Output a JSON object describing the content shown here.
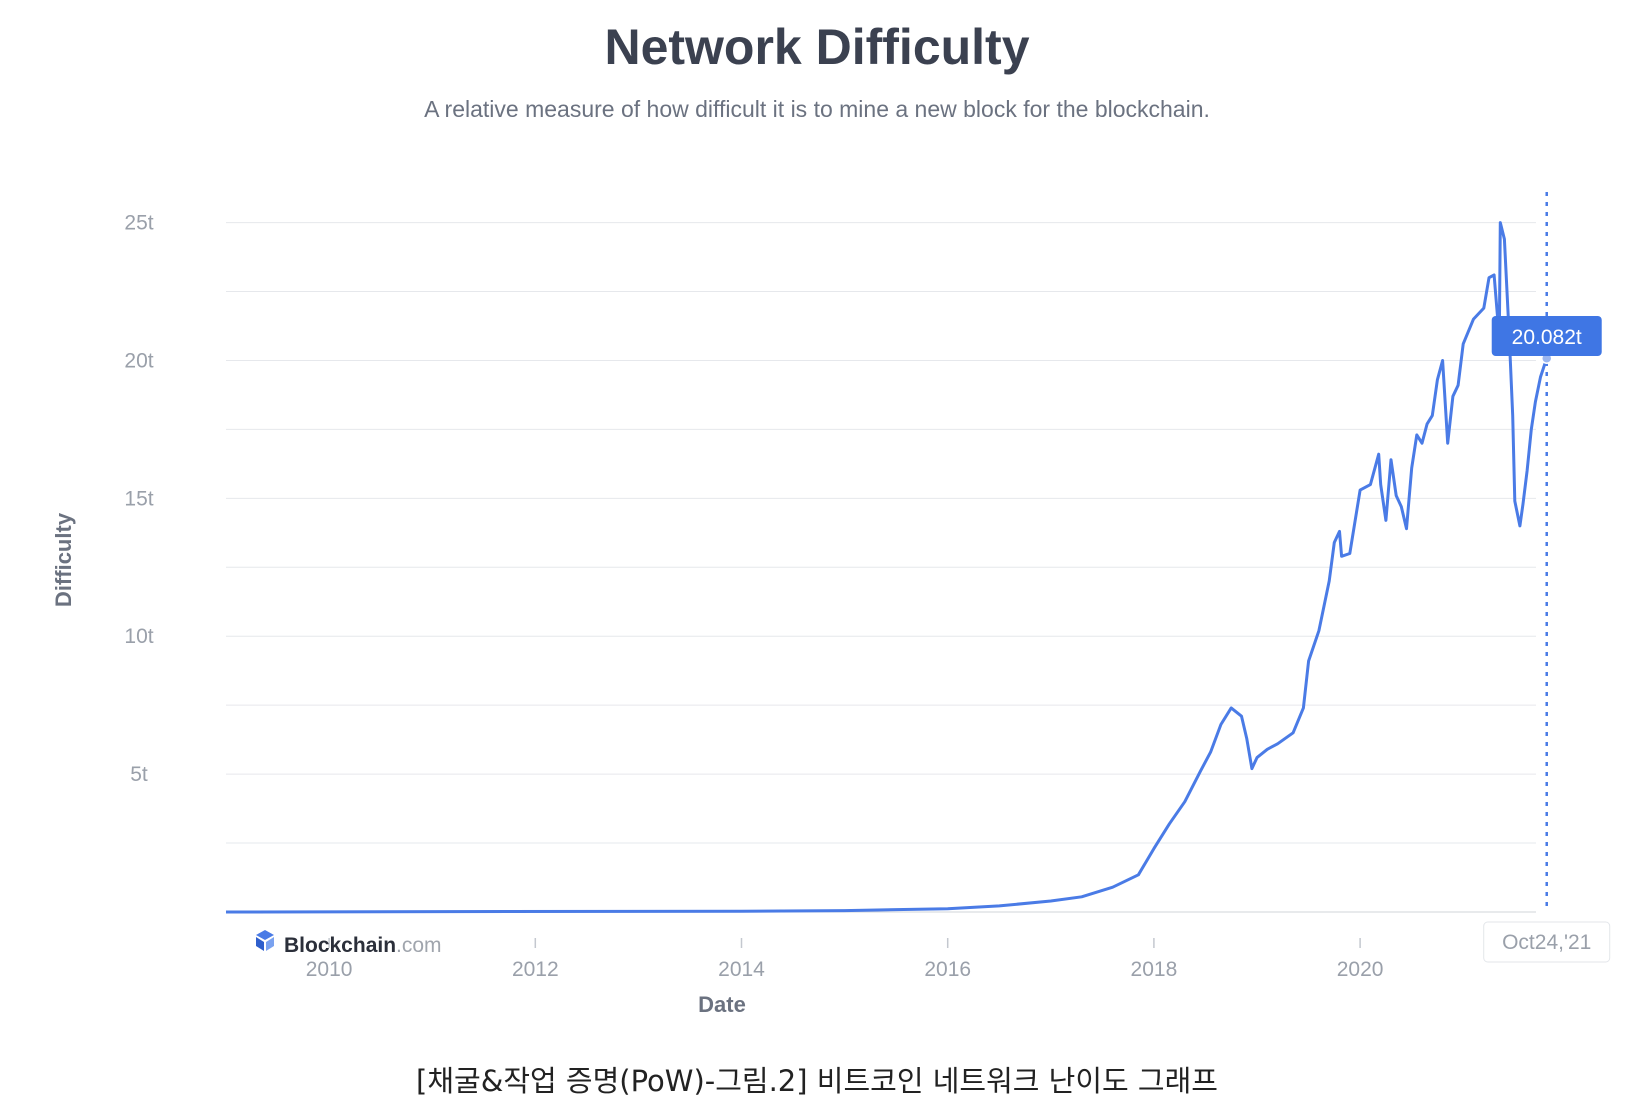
{
  "caption": "[채굴&작업 증명(PoW)-그림.2] 비트코인 네트워크 난이도 그래프",
  "brand": {
    "name": "Blockchain",
    "suffix": ".com"
  },
  "colors": {
    "line": "#4a7be6",
    "grid": "#e6e8ec",
    "text": "#9aa0aa",
    "tooltip": "#3f76e4"
  },
  "chart_data": {
    "type": "line",
    "title": "Network Difficulty",
    "subtitle": "A relative measure of how difficult it is to mine a new block for the blockchain.",
    "xlabel": "Date",
    "ylabel": "Difficulty",
    "xlim": [
      2009.0,
      2021.9
    ],
    "ylim": [
      0,
      26
    ],
    "y_ticks": [
      5,
      10,
      15,
      20,
      25
    ],
    "y_tick_labels": [
      "5t",
      "10t",
      "15t",
      "20t",
      "25t"
    ],
    "x_ticks": [
      2010,
      2012,
      2014,
      2016,
      2018,
      2020
    ],
    "x_tick_labels": [
      "2010",
      "2012",
      "2014",
      "2016",
      "2018",
      "2020"
    ],
    "grid": true,
    "cursor": {
      "x": 2021.81,
      "date_label": "Oct24,'21",
      "value_label": "20.082t",
      "value": 20.082
    },
    "series": [
      {
        "unit": "t",
        "points": [
          [
            2009.0,
            0.0
          ],
          [
            2014.0,
            0.03
          ],
          [
            2015.0,
            0.05
          ],
          [
            2016.0,
            0.12
          ],
          [
            2016.5,
            0.22
          ],
          [
            2017.0,
            0.4
          ],
          [
            2017.3,
            0.55
          ],
          [
            2017.6,
            0.9
          ],
          [
            2017.85,
            1.35
          ],
          [
            2018.0,
            2.3
          ],
          [
            2018.15,
            3.2
          ],
          [
            2018.3,
            4.0
          ],
          [
            2018.45,
            5.1
          ],
          [
            2018.55,
            5.8
          ],
          [
            2018.65,
            6.8
          ],
          [
            2018.75,
            7.4
          ],
          [
            2018.85,
            7.1
          ],
          [
            2018.9,
            6.3
          ],
          [
            2018.95,
            5.2
          ],
          [
            2019.0,
            5.6
          ],
          [
            2019.1,
            5.9
          ],
          [
            2019.2,
            6.1
          ],
          [
            2019.35,
            6.5
          ],
          [
            2019.45,
            7.4
          ],
          [
            2019.5,
            9.1
          ],
          [
            2019.6,
            10.2
          ],
          [
            2019.7,
            12.0
          ],
          [
            2019.75,
            13.4
          ],
          [
            2019.8,
            13.8
          ],
          [
            2019.82,
            12.9
          ],
          [
            2019.9,
            13.0
          ],
          [
            2020.0,
            15.3
          ],
          [
            2020.1,
            15.5
          ],
          [
            2020.18,
            16.6
          ],
          [
            2020.2,
            15.5
          ],
          [
            2020.25,
            14.2
          ],
          [
            2020.3,
            16.4
          ],
          [
            2020.35,
            15.1
          ],
          [
            2020.4,
            14.7
          ],
          [
            2020.45,
            13.9
          ],
          [
            2020.5,
            16.1
          ],
          [
            2020.55,
            17.3
          ],
          [
            2020.6,
            17.0
          ],
          [
            2020.65,
            17.7
          ],
          [
            2020.7,
            18.0
          ],
          [
            2020.75,
            19.3
          ],
          [
            2020.8,
            20.0
          ],
          [
            2020.85,
            17.0
          ],
          [
            2020.9,
            18.7
          ],
          [
            2020.95,
            19.1
          ],
          [
            2021.0,
            20.6
          ],
          [
            2021.1,
            21.5
          ],
          [
            2021.2,
            21.9
          ],
          [
            2021.25,
            23.0
          ],
          [
            2021.3,
            23.1
          ],
          [
            2021.35,
            20.8
          ],
          [
            2021.36,
            25.0
          ],
          [
            2021.4,
            24.4
          ],
          [
            2021.45,
            20.6
          ],
          [
            2021.48,
            18.0
          ],
          [
            2021.5,
            14.9
          ],
          [
            2021.55,
            14.0
          ],
          [
            2021.58,
            14.8
          ],
          [
            2021.62,
            16.0
          ],
          [
            2021.66,
            17.5
          ],
          [
            2021.7,
            18.5
          ],
          [
            2021.75,
            19.4
          ],
          [
            2021.81,
            20.082
          ]
        ]
      }
    ]
  }
}
